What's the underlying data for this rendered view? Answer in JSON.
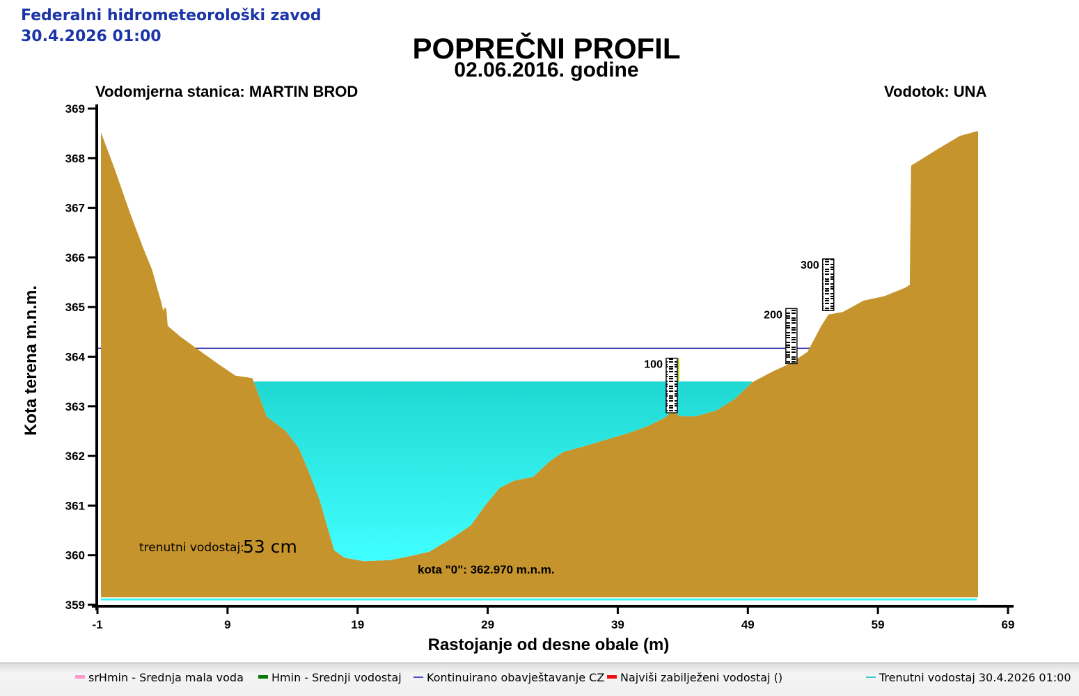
{
  "header": {
    "org": "Federalni hidrometeorološki zavod",
    "datetime": "30.4.2026 01:00"
  },
  "title": "POPREČNI PROFIL",
  "subtitle": "02.06.2016. godine",
  "station_label": "Vodomjerna stanica: MARTIN BROD",
  "river_label": "Vodotok: UNA",
  "annotations": {
    "current_level_label": "trenutni vodostaj:",
    "current_level_value": "53 cm",
    "datum_label": "kota \"0\": 362.970 m.n.m."
  },
  "chart_data": {
    "type": "area",
    "title": "POPREČNI PROFIL",
    "xlabel": "Rastojanje od desne obale (m)",
    "ylabel": "Kota terena m.n.m.",
    "xlim": [
      -1,
      69
    ],
    "ylim": [
      359,
      369
    ],
    "xticks": [
      "-1",
      "9",
      "19",
      "29",
      "39",
      "49",
      "59",
      "69"
    ],
    "yticks": [
      "369",
      "368",
      "367",
      "366",
      "365",
      "364",
      "363",
      "362",
      "361",
      "360",
      "359"
    ],
    "grid": false,
    "terrain_color": "#C6942C",
    "water_color_top": "#20D8D2",
    "water_color_bottom": "#40FFFF",
    "water_level_m": 363.5,
    "terrain_base_el": 359.15,
    "baseline_stripe": {
      "color": "#2DF4F4"
    },
    "cz_line": {
      "level_m": 364.17,
      "color": "#1A1AA8",
      "x_from": -1,
      "x_to": 55.5
    },
    "hmin_marker": {
      "x_m": 43.62,
      "top_el": 363.97,
      "bottom_el": 363.5,
      "color": "#A4D60A"
    },
    "water_surface": {
      "x_from": 11.05,
      "x_to": 49.3
    },
    "terrain_profile": [
      [
        -0.73,
        368.52
      ],
      [
        0.3,
        367.8
      ],
      [
        1.5,
        366.9
      ],
      [
        2.5,
        366.2
      ],
      [
        3.2,
        365.75
      ],
      [
        3.9,
        365.1
      ],
      [
        4.05,
        364.93
      ],
      [
        4.2,
        365.0
      ],
      [
        4.3,
        364.95
      ],
      [
        4.4,
        364.62
      ],
      [
        5.4,
        364.4
      ],
      [
        6.7,
        364.15
      ],
      [
        8.3,
        363.85
      ],
      [
        9.6,
        363.62
      ],
      [
        10.9,
        363.57
      ],
      [
        11.05,
        363.48
      ],
      [
        12.0,
        362.8
      ],
      [
        13.5,
        362.5
      ],
      [
        14.5,
        362.15
      ],
      [
        15.3,
        361.65
      ],
      [
        16.1,
        361.1
      ],
      [
        16.7,
        360.55
      ],
      [
        17.2,
        360.1
      ],
      [
        18.0,
        359.95
      ],
      [
        19.5,
        359.88
      ],
      [
        21.5,
        359.9
      ],
      [
        23.0,
        359.98
      ],
      [
        24.5,
        360.07
      ],
      [
        26.3,
        360.35
      ],
      [
        27.7,
        360.6
      ],
      [
        28.8,
        361.0
      ],
      [
        29.9,
        361.35
      ],
      [
        31.0,
        361.5
      ],
      [
        32.5,
        361.58
      ],
      [
        33.8,
        361.9
      ],
      [
        34.8,
        362.08
      ],
      [
        36.5,
        362.2
      ],
      [
        38.1,
        362.33
      ],
      [
        39.7,
        362.45
      ],
      [
        41.3,
        362.6
      ],
      [
        42.6,
        362.77
      ],
      [
        43.2,
        362.9
      ],
      [
        43.8,
        362.8
      ],
      [
        45.0,
        362.8
      ],
      [
        46.6,
        362.92
      ],
      [
        48.0,
        363.15
      ],
      [
        49.3,
        363.48
      ],
      [
        50.9,
        363.7
      ],
      [
        52.3,
        363.87
      ],
      [
        53.6,
        364.1
      ],
      [
        54.6,
        364.6
      ],
      [
        55.2,
        364.85
      ],
      [
        56.3,
        364.9
      ],
      [
        57.9,
        365.13
      ],
      [
        59.5,
        365.22
      ],
      [
        61.1,
        365.39
      ],
      [
        61.45,
        365.45
      ],
      [
        61.55,
        367.85
      ],
      [
        63.7,
        368.2
      ],
      [
        65.3,
        368.45
      ],
      [
        66.7,
        368.55
      ]
    ],
    "gauges": [
      {
        "label": "100",
        "x_m": 43.15,
        "top_el": 363.97,
        "base_el": 362.87
      },
      {
        "label": "200",
        "x_m": 52.35,
        "top_el": 364.97,
        "base_el": 363.86
      },
      {
        "label": "300",
        "x_m": 55.18,
        "top_el": 365.97,
        "base_el": 364.93
      }
    ]
  },
  "legend": {
    "items": [
      {
        "label": "srHmin - Srednja mala voda",
        "color": "#FF9ACD",
        "style": "thick"
      },
      {
        "label": "Hmin - Srednji vodostaj",
        "color": "#067A06",
        "style": "thick"
      },
      {
        "label": "Kontinuirano obavještavanje CZ",
        "color": "#4C4CC8",
        "style": "thin"
      },
      {
        "label": "Najviši zabilježeni vodostaj ()",
        "color": "#EE1111",
        "style": "thick"
      },
      {
        "label": "Trenutni vodostaj 30.4.2026 01:00",
        "color": "#3FC8D2",
        "style": "thin"
      }
    ]
  }
}
